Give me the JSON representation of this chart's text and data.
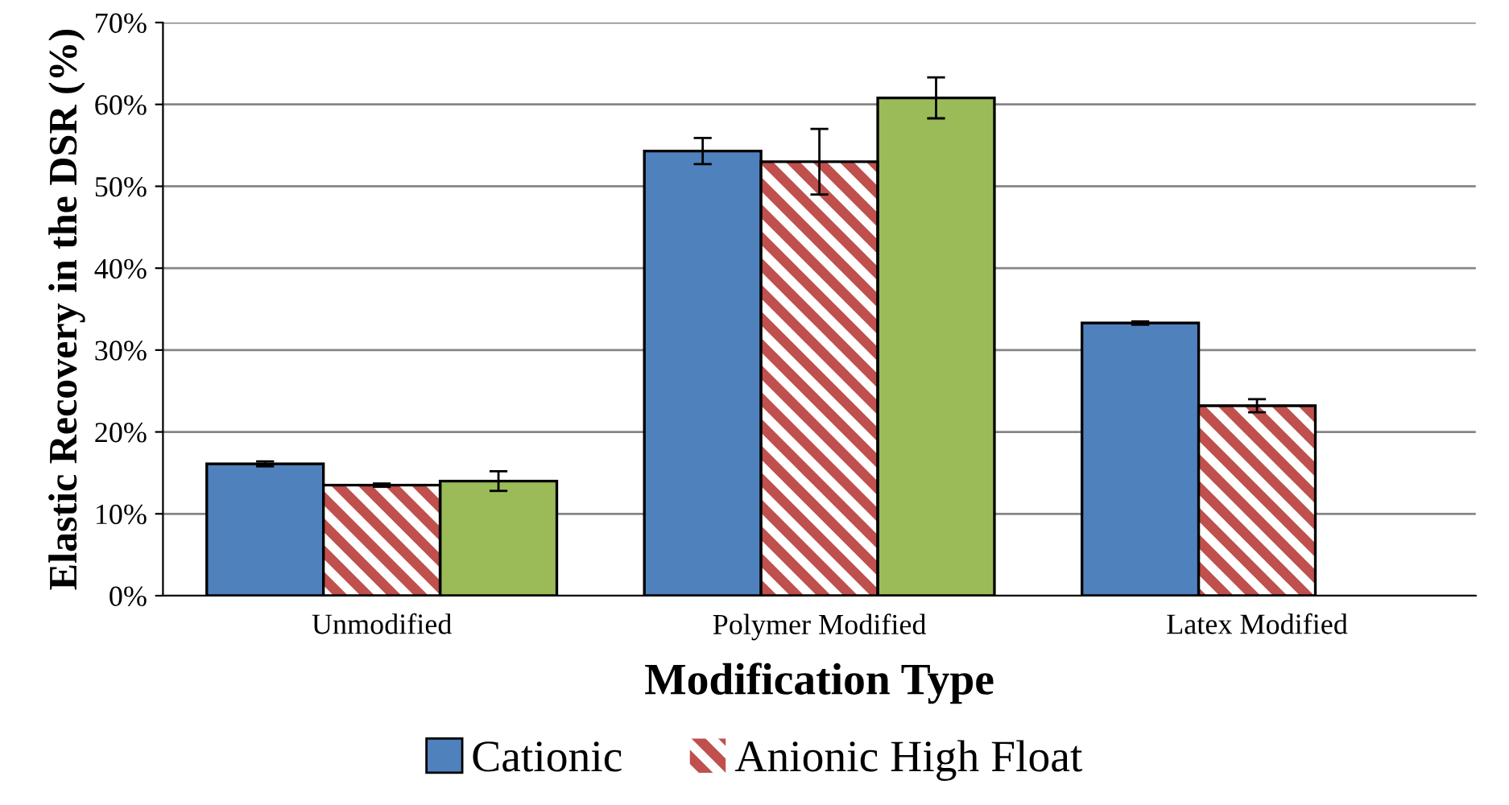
{
  "chart_data": {
    "type": "bar",
    "xlabel": "Modification Type",
    "ylabel": "Elastic Recovery in the DSR (%)",
    "categories": [
      "Unmodified",
      "Polymer Modified",
      "Latex Modified"
    ],
    "series": [
      {
        "name": "Cationic",
        "color": "#4f81bd",
        "values": [
          16.1,
          54.3,
          33.3
        ],
        "errors": [
          0.3,
          1.6,
          0.2
        ]
      },
      {
        "name": "Anionic High Float",
        "color": "#c0504d",
        "values": [
          13.5,
          53.0,
          23.2
        ],
        "errors": [
          0.2,
          4.0,
          0.8
        ]
      },
      {
        "color": "#9bbb59",
        "values": [
          14.0,
          60.8,
          null
        ],
        "errors": [
          1.2,
          2.5,
          null
        ]
      }
    ],
    "ylim": [
      0,
      70
    ],
    "yticks": [
      {
        "value": 0,
        "label": "0%"
      },
      {
        "value": 10,
        "label": "10%"
      },
      {
        "value": 20,
        "label": "20%"
      },
      {
        "value": 30,
        "label": "30%"
      },
      {
        "value": 40,
        "label": "40%"
      },
      {
        "value": 50,
        "label": "50%"
      },
      {
        "value": 60,
        "label": "60%"
      },
      {
        "value": 70,
        "label": "70%"
      }
    ],
    "grid": "y",
    "legend": "bottom"
  }
}
